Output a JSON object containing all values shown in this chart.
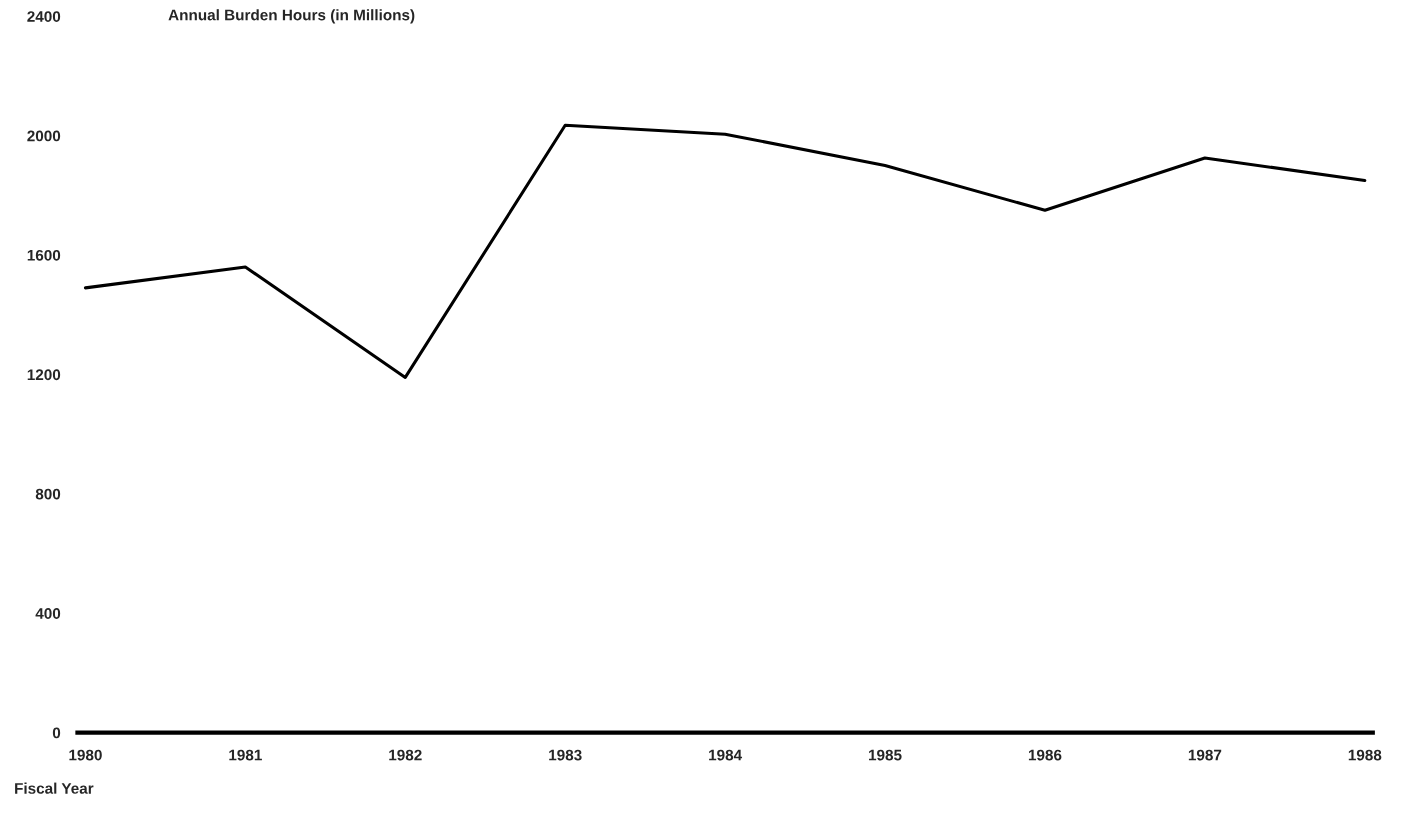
{
  "chart_data": {
    "type": "line",
    "title": "Annual Burden Hours (in Millions)",
    "xlabel": "Fiscal Year",
    "categories": [
      "1980",
      "1981",
      "1982",
      "1983",
      "1984",
      "1985",
      "1986",
      "1987",
      "1988"
    ],
    "series": [
      {
        "color": "#000000",
        "values": [
          1490,
          1560,
          1190,
          2035,
          2005,
          1900,
          1750,
          1925,
          1850
        ]
      }
    ],
    "ylim": [
      0,
      2400
    ],
    "yticks": [
      0,
      400,
      800,
      1200,
      1600,
      2000,
      2400
    ],
    "grid": false,
    "marker": "none",
    "line_style": "solid"
  }
}
